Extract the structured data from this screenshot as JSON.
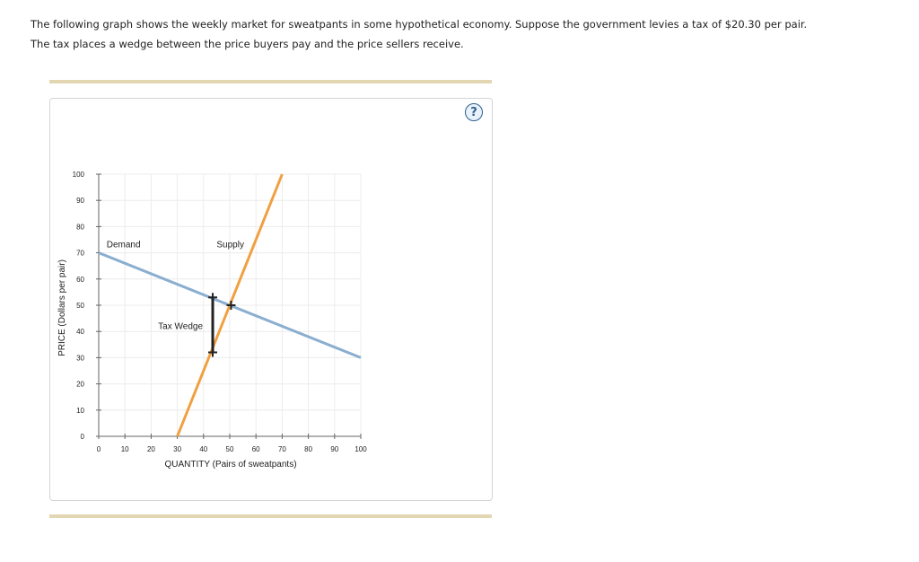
{
  "intro": {
    "line1": "The following graph shows the weekly market for sweatpants in some hypothetical economy. Suppose the government levies a tax of $20.30 per pair.",
    "line2": "The tax places a wedge between the price buyers pay and the price sellers receive."
  },
  "help": {
    "label": "?"
  },
  "chart_data": {
    "type": "line",
    "xlabel": "QUANTITY (Pairs of sweatpants)",
    "ylabel": "PRICE (Dollars per pair)",
    "xlim": [
      0,
      100
    ],
    "ylim": [
      0,
      100
    ],
    "xticks": [
      0,
      10,
      20,
      30,
      40,
      50,
      60,
      70,
      80,
      90,
      100
    ],
    "yticks": [
      0,
      10,
      20,
      30,
      40,
      50,
      60,
      70,
      80,
      90,
      100
    ],
    "grid": true,
    "series": [
      {
        "name": "Demand",
        "color": "#8aaed0",
        "x": [
          0,
          100
        ],
        "y": [
          70,
          30
        ]
      },
      {
        "name": "Supply",
        "color": "#f0a040",
        "x": [
          30,
          70
        ],
        "y": [
          0,
          100
        ]
      }
    ],
    "points": [
      {
        "x": 43.5,
        "y": 53
      },
      {
        "x": 50.5,
        "y": 50
      },
      {
        "x": 43.5,
        "y": 32
      }
    ],
    "wedge": {
      "x": 43.5,
      "y_top": 53,
      "y_bottom": 32,
      "label": "Tax Wedge"
    }
  }
}
